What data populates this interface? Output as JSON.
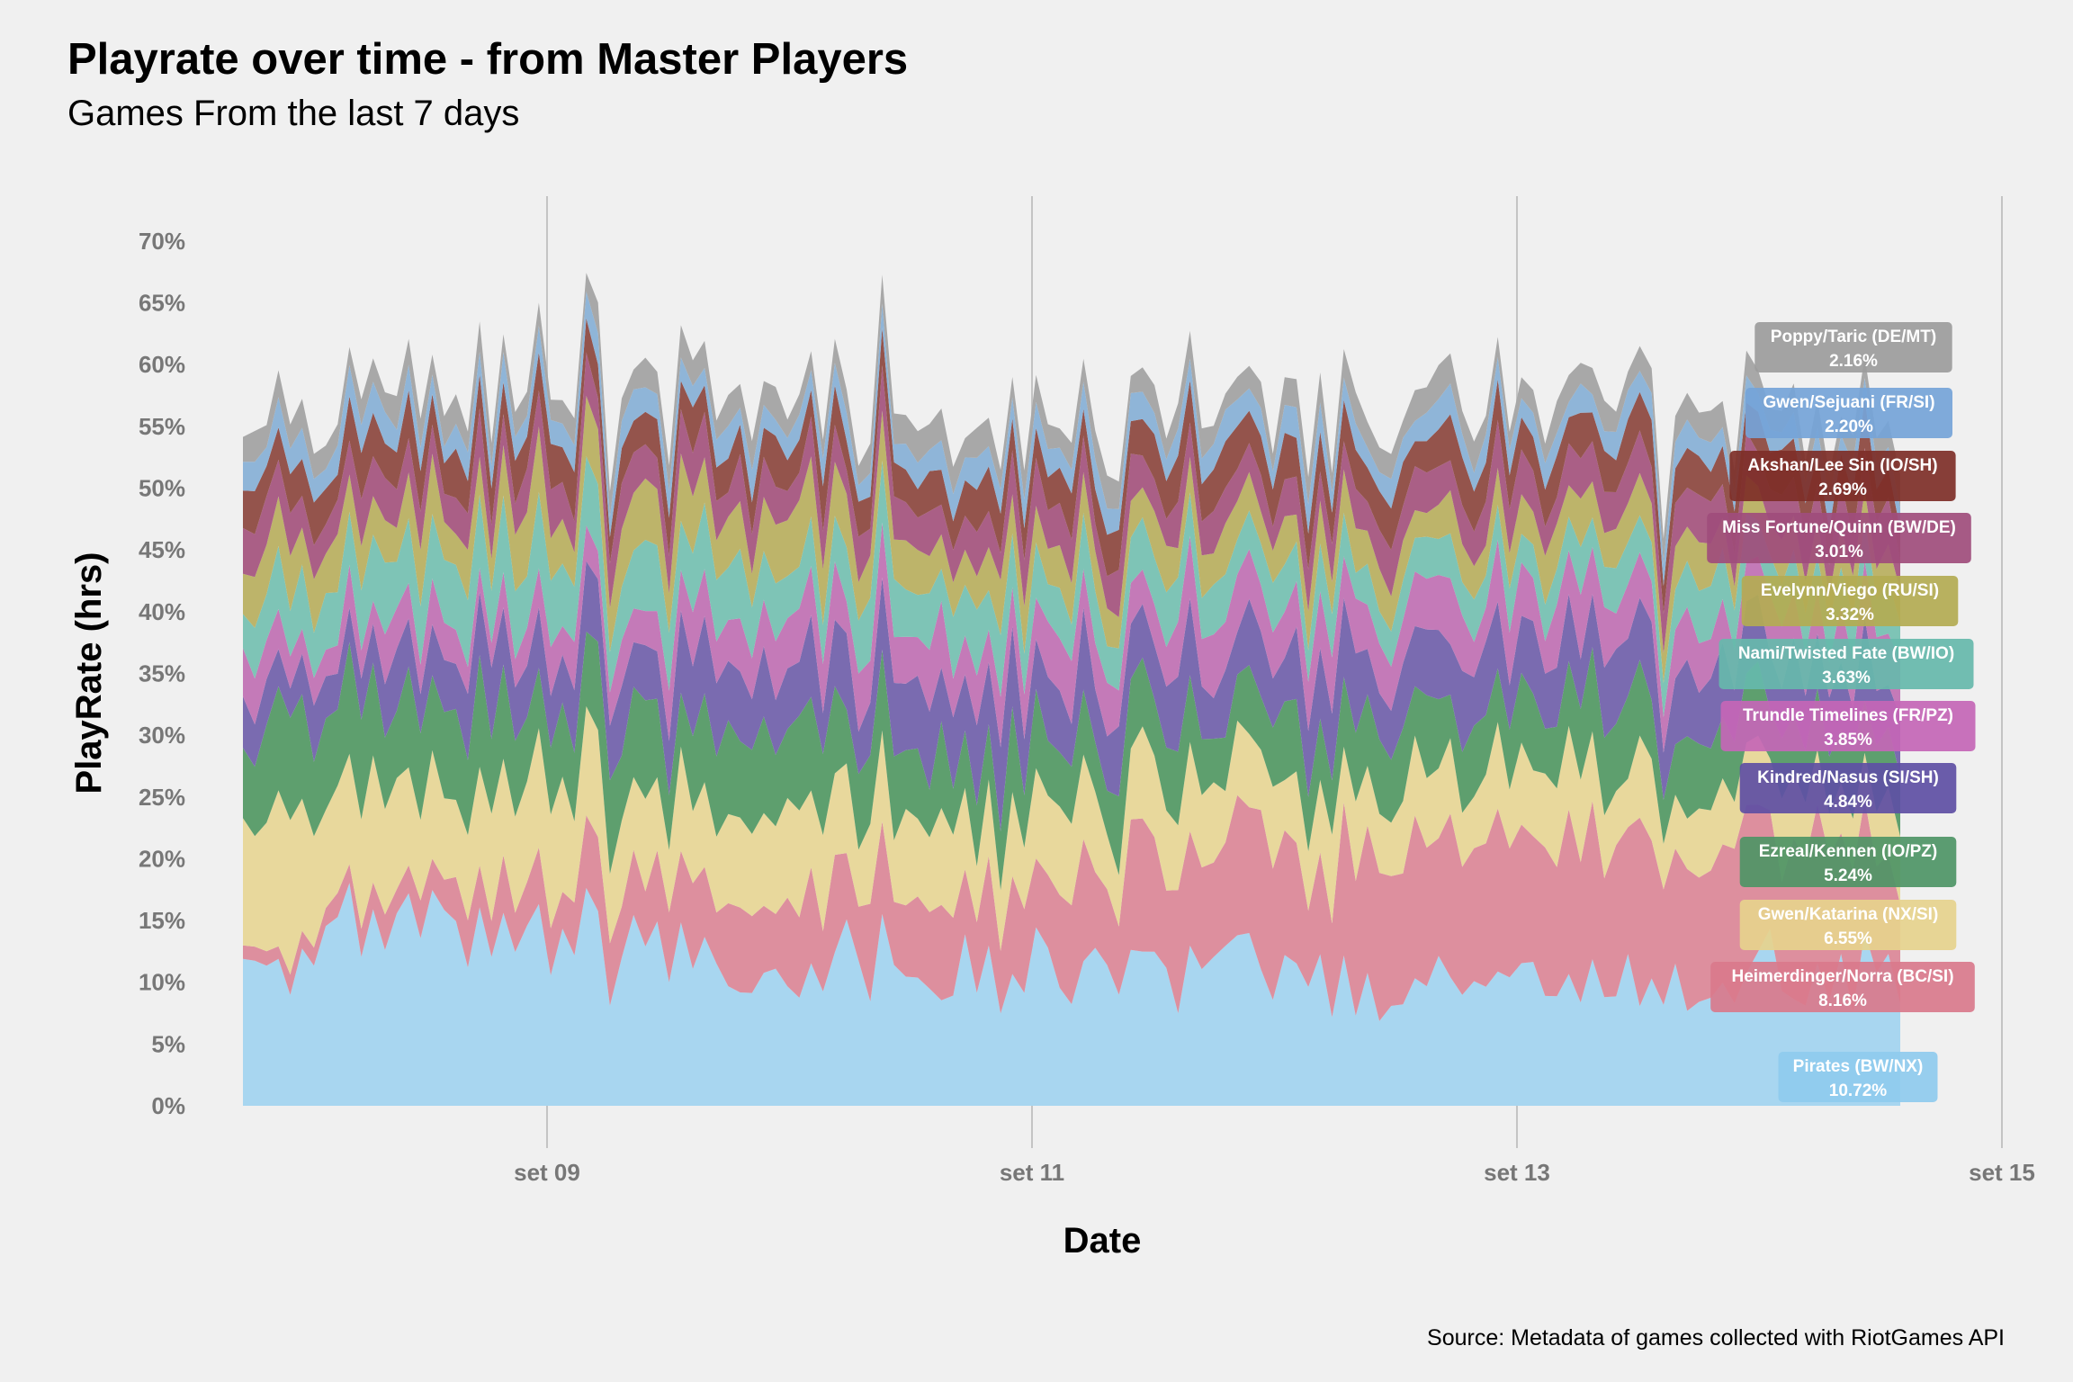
{
  "chart_data": {
    "type": "area",
    "stacked": true,
    "title": "Playrate over time - from Master Players",
    "subtitle": "Games From the last 7 days",
    "xlabel": "Date",
    "ylabel": "PlayRate (hrs)",
    "caption": "Source: Metadata of games collected with RiotGames API",
    "x_start": "set 08",
    "x_end": "set 14",
    "xticks": [
      "set 09",
      "set 11",
      "set 13",
      "set 15"
    ],
    "yticks": [
      "0%",
      "5%",
      "10%",
      "15%",
      "20%",
      "25%",
      "30%",
      "35%",
      "40%",
      "45%",
      "50%",
      "55%",
      "60%",
      "65%",
      "70%"
    ],
    "ylim": [
      0,
      0.7
    ],
    "grid": "vertical lines only",
    "legend": "direct labels at right end of areas",
    "x_points": [
      "set 08",
      "set 09",
      "set 10",
      "set 11",
      "set 12",
      "set 13",
      "set 14"
    ],
    "series": [
      {
        "name": "Pirates (BW/NX)",
        "label_value": "10.72%",
        "color": "#a8d6f0",
        "label_color": "#8fcbee",
        "values": [
          0.13,
          0.13,
          0.12,
          0.11,
          0.1,
          0.1,
          0.11
        ]
      },
      {
        "name": "Heimerdinger/Norra (BC/SI)",
        "label_value": "8.16%",
        "color": "#dd8f9e",
        "label_color": "#d97a8c",
        "values": [
          0.01,
          0.04,
          0.06,
          0.08,
          0.1,
          0.12,
          0.09
        ]
      },
      {
        "name": "Gwen/Katarina (NX/SI)",
        "label_value": "6.55%",
        "color": "#e8d89c",
        "label_color": "#e6d38d",
        "values": [
          0.1,
          0.08,
          0.07,
          0.06,
          0.06,
          0.05,
          0.05
        ]
      },
      {
        "name": "Ezreal/Kennen (IO/PZ)",
        "label_value": "5.24%",
        "color": "#5e9f6e",
        "label_color": "#4e9566",
        "values": [
          0.07,
          0.07,
          0.06,
          0.05,
          0.05,
          0.05,
          0.05
        ]
      },
      {
        "name": "Kindred/Nasus (SI/SH)",
        "label_value": "4.84%",
        "color": "#7a6bb0",
        "label_color": "#5e4fa4",
        "values": [
          0.03,
          0.05,
          0.05,
          0.05,
          0.05,
          0.05,
          0.05
        ]
      },
      {
        "name": "Trundle Timelines (FR/PZ)",
        "label_value": "3.85%",
        "color": "#c47ab8",
        "label_color": "#c466b6",
        "values": [
          0.03,
          0.03,
          0.04,
          0.04,
          0.04,
          0.04,
          0.04
        ]
      },
      {
        "name": "Nami/Twisted Fate (BW/IO)",
        "label_value": "3.63%",
        "color": "#7ec4b6",
        "label_color": "#66b9ab",
        "values": [
          0.04,
          0.05,
          0.04,
          0.04,
          0.03,
          0.03,
          0.04
        ]
      },
      {
        "name": "Evelynn/Viego (RU/SI)",
        "label_value": "3.32%",
        "color": "#bdb46a",
        "label_color": "#b3ab52",
        "values": [
          0.04,
          0.04,
          0.04,
          0.03,
          0.03,
          0.03,
          0.03
        ]
      },
      {
        "name": "Miss Fortune/Quinn (BW/DE)",
        "label_value": "3.01%",
        "color": "#aa5f86",
        "label_color": "#a04d7c",
        "values": [
          0.03,
          0.03,
          0.03,
          0.03,
          0.03,
          0.03,
          0.03
        ]
      },
      {
        "name": "Akshan/Lee Sin (IO/SH)",
        "label_value": "2.69%",
        "color": "#94544c",
        "label_color": "#7e2f28",
        "values": [
          0.03,
          0.03,
          0.03,
          0.03,
          0.03,
          0.03,
          0.03
        ]
      },
      {
        "name": "Gwen/Sejuani (FR/SI)",
        "label_value": "2.20%",
        "color": "#8fb5d8",
        "label_color": "#75a4d8",
        "values": [
          0.02,
          0.02,
          0.02,
          0.02,
          0.02,
          0.02,
          0.02
        ]
      },
      {
        "name": "Poppy/Taric (DE/MT)",
        "label_value": "2.16%",
        "color": "#a8a8a8",
        "label_color": "#9c9c9c",
        "values": [
          0.02,
          0.02,
          0.02,
          0.02,
          0.02,
          0.02,
          0.02
        ]
      }
    ]
  }
}
